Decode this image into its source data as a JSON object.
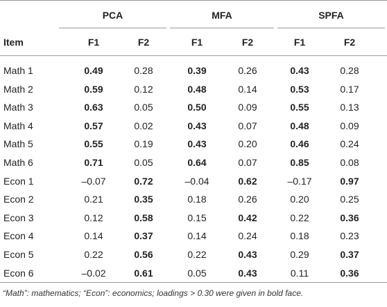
{
  "table": {
    "groups": [
      "PCA",
      "MFA",
      "SPFA"
    ],
    "columns": [
      "Item",
      "F1",
      "F2",
      "F1",
      "F2",
      "F1",
      "F2"
    ],
    "rows": [
      [
        "Math 1",
        "0.49",
        "0.28",
        "0.39",
        "0.26",
        "0.43",
        "0.28"
      ],
      [
        "Math 2",
        "0.59",
        "0.12",
        "0.48",
        "0.14",
        "0.53",
        "0.17"
      ],
      [
        "Math 3",
        "0.63",
        "0.05",
        "0.50",
        "0.09",
        "0.55",
        "0.13"
      ],
      [
        "Math 4",
        "0.57",
        "0.02",
        "0.43",
        "0.07",
        "0.48",
        "0.09"
      ],
      [
        "Math 5",
        "0.55",
        "0.19",
        "0.43",
        "0.20",
        "0.46",
        "0.24"
      ],
      [
        "Math 6",
        "0.71",
        "0.05",
        "0.64",
        "0.07",
        "0.85",
        "0.08"
      ],
      [
        "Econ 1",
        "–0.07",
        "0.72",
        "–0.04",
        "0.62",
        "–0.17",
        "0.97"
      ],
      [
        "Econ 2",
        "0.21",
        "0.35",
        "0.18",
        "0.26",
        "0.20",
        "0.25"
      ],
      [
        "Econ 3",
        "0.12",
        "0.58",
        "0.15",
        "0.42",
        "0.22",
        "0.36"
      ],
      [
        "Econ 4",
        "0.14",
        "0.37",
        "0.14",
        "0.24",
        "0.18",
        "0.23"
      ],
      [
        "Econ 5",
        "0.22",
        "0.56",
        "0.22",
        "0.43",
        "0.29",
        "0.37"
      ],
      [
        "Econ 6",
        "–0.02",
        "0.61",
        "0.05",
        "0.43",
        "0.11",
        "0.36"
      ]
    ],
    "bold": [
      [
        true,
        false,
        true,
        false,
        true,
        false
      ],
      [
        true,
        false,
        true,
        false,
        true,
        false
      ],
      [
        true,
        false,
        true,
        false,
        true,
        false
      ],
      [
        true,
        false,
        true,
        false,
        true,
        false
      ],
      [
        true,
        false,
        true,
        false,
        true,
        false
      ],
      [
        true,
        false,
        true,
        false,
        true,
        false
      ],
      [
        false,
        true,
        false,
        true,
        false,
        true
      ],
      [
        false,
        true,
        false,
        false,
        false,
        false
      ],
      [
        false,
        true,
        false,
        true,
        false,
        true
      ],
      [
        false,
        true,
        false,
        false,
        false,
        false
      ],
      [
        false,
        true,
        false,
        true,
        false,
        true
      ],
      [
        false,
        true,
        false,
        true,
        false,
        true
      ]
    ]
  },
  "footnote": "“Math”: mathematics; “Econ”: economics; loadings > 0.30 were given in bold face."
}
